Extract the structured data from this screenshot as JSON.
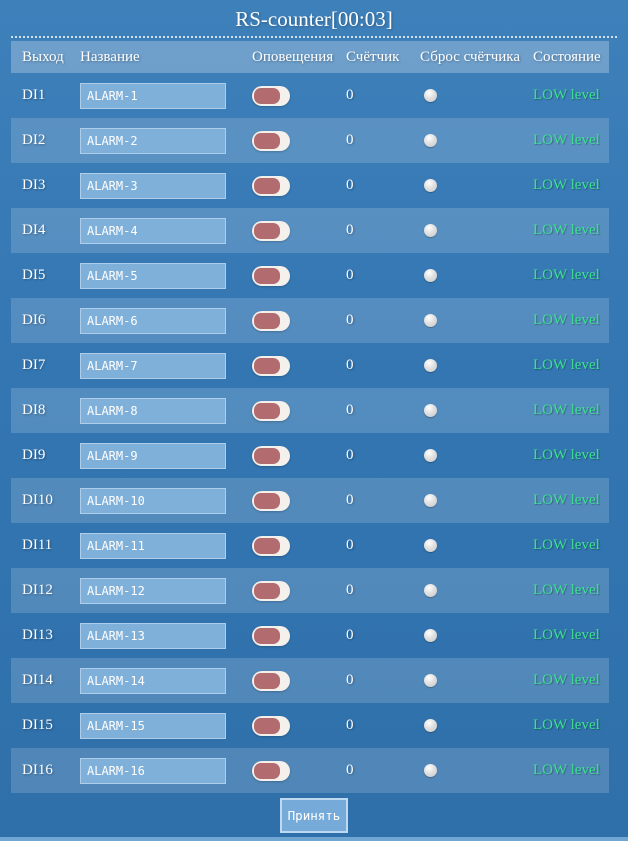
{
  "title": "RS-counter[00:03]",
  "table": {
    "headers": [
      "Выход",
      "Название",
      "Оповещения",
      "Счётчик",
      "Сброс счётчика",
      "Состояние"
    ],
    "rows": [
      {
        "output": "DI1",
        "name": "ALARM-1",
        "notifications": "off",
        "counter": "0",
        "reset": "unchecked",
        "state": "LOW level"
      },
      {
        "output": "DI2",
        "name": "ALARM-2",
        "notifications": "off",
        "counter": "0",
        "reset": "unchecked",
        "state": "LOW level"
      },
      {
        "output": "DI3",
        "name": "ALARM-3",
        "notifications": "off",
        "counter": "0",
        "reset": "unchecked",
        "state": "LOW level"
      },
      {
        "output": "DI4",
        "name": "ALARM-4",
        "notifications": "off",
        "counter": "0",
        "reset": "unchecked",
        "state": "LOW level"
      },
      {
        "output": "DI5",
        "name": "ALARM-5",
        "notifications": "off",
        "counter": "0",
        "reset": "unchecked",
        "state": "LOW level"
      },
      {
        "output": "DI6",
        "name": "ALARM-6",
        "notifications": "off",
        "counter": "0",
        "reset": "unchecked",
        "state": "LOW level"
      },
      {
        "output": "DI7",
        "name": "ALARM-7",
        "notifications": "off",
        "counter": "0",
        "reset": "unchecked",
        "state": "LOW level"
      },
      {
        "output": "DI8",
        "name": "ALARM-8",
        "notifications": "off",
        "counter": "0",
        "reset": "unchecked",
        "state": "LOW level"
      },
      {
        "output": "DI9",
        "name": "ALARM-9",
        "notifications": "off",
        "counter": "0",
        "reset": "unchecked",
        "state": "LOW level"
      },
      {
        "output": "DI10",
        "name": "ALARM-10",
        "notifications": "off",
        "counter": "0",
        "reset": "unchecked",
        "state": "LOW level"
      },
      {
        "output": "DI11",
        "name": "ALARM-11",
        "notifications": "off",
        "counter": "0",
        "reset": "unchecked",
        "state": "LOW level"
      },
      {
        "output": "DI12",
        "name": "ALARM-12",
        "notifications": "off",
        "counter": "0",
        "reset": "unchecked",
        "state": "LOW level"
      },
      {
        "output": "DI13",
        "name": "ALARM-13",
        "notifications": "off",
        "counter": "0",
        "reset": "unchecked",
        "state": "LOW level"
      },
      {
        "output": "DI14",
        "name": "ALARM-14",
        "notifications": "off",
        "counter": "0",
        "reset": "unchecked",
        "state": "LOW level"
      },
      {
        "output": "DI15",
        "name": "ALARM-15",
        "notifications": "off",
        "counter": "0",
        "reset": "unchecked",
        "state": "LOW level"
      },
      {
        "output": "DI16",
        "name": "ALARM-16",
        "notifications": "off",
        "counter": "0",
        "reset": "unchecked",
        "state": "LOW level"
      }
    ]
  },
  "submit_label": "Принять",
  "colors": {
    "background": "#3377b3",
    "header_band": "#6f9cc4",
    "row_highlight": "#5e93c3",
    "input_bg": "#7fb0d9",
    "input_border": "#aecdea",
    "toggle_track": "#f4f1ec",
    "toggle_knob": "#b26b6e",
    "radio": "#d6d6d6",
    "state_green": "#3ee08f",
    "button_bg": "#76abd9",
    "text": "#ffffff"
  }
}
